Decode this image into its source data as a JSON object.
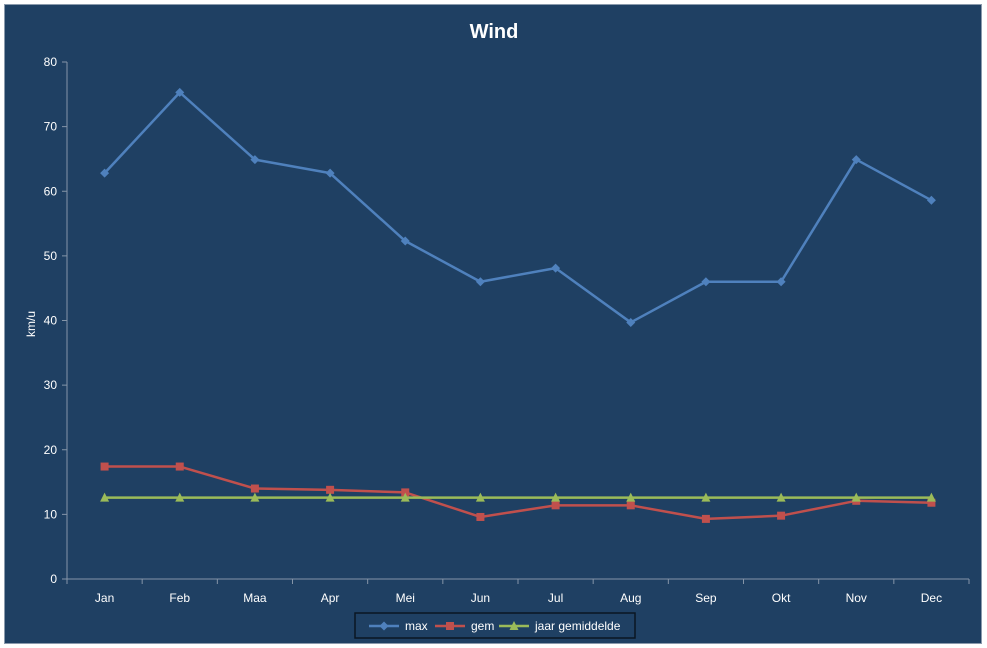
{
  "chart_data": {
    "type": "line",
    "title": "Wind",
    "xlabel": "",
    "ylabel": "km/u",
    "categories": [
      "Jan",
      "Feb",
      "Maa",
      "Apr",
      "Mei",
      "Jun",
      "Jul",
      "Aug",
      "Sep",
      "Okt",
      "Nov",
      "Dec"
    ],
    "ylim": [
      0,
      80
    ],
    "yticks": [
      0,
      10,
      20,
      30,
      40,
      50,
      60,
      70,
      80
    ],
    "grid": false,
    "legend": "bottom",
    "background_color": "#1f4063",
    "series": [
      {
        "name": "max",
        "color": "#4f81bd",
        "marker": "diamond",
        "values": [
          62.8,
          75.3,
          64.9,
          62.8,
          52.3,
          46.0,
          48.1,
          39.7,
          46.0,
          46.0,
          64.9,
          58.6
        ]
      },
      {
        "name": "gem",
        "color": "#c0504d",
        "marker": "square",
        "values": [
          17.4,
          17.4,
          14.0,
          13.8,
          13.4,
          9.6,
          11.4,
          11.4,
          9.3,
          9.8,
          12.1,
          11.8
        ]
      },
      {
        "name": "jaar gemiddelde",
        "color": "#9bbb59",
        "marker": "triangle",
        "values": [
          12.6,
          12.6,
          12.6,
          12.6,
          12.6,
          12.6,
          12.6,
          12.6,
          12.6,
          12.6,
          12.6,
          12.6
        ]
      }
    ]
  }
}
